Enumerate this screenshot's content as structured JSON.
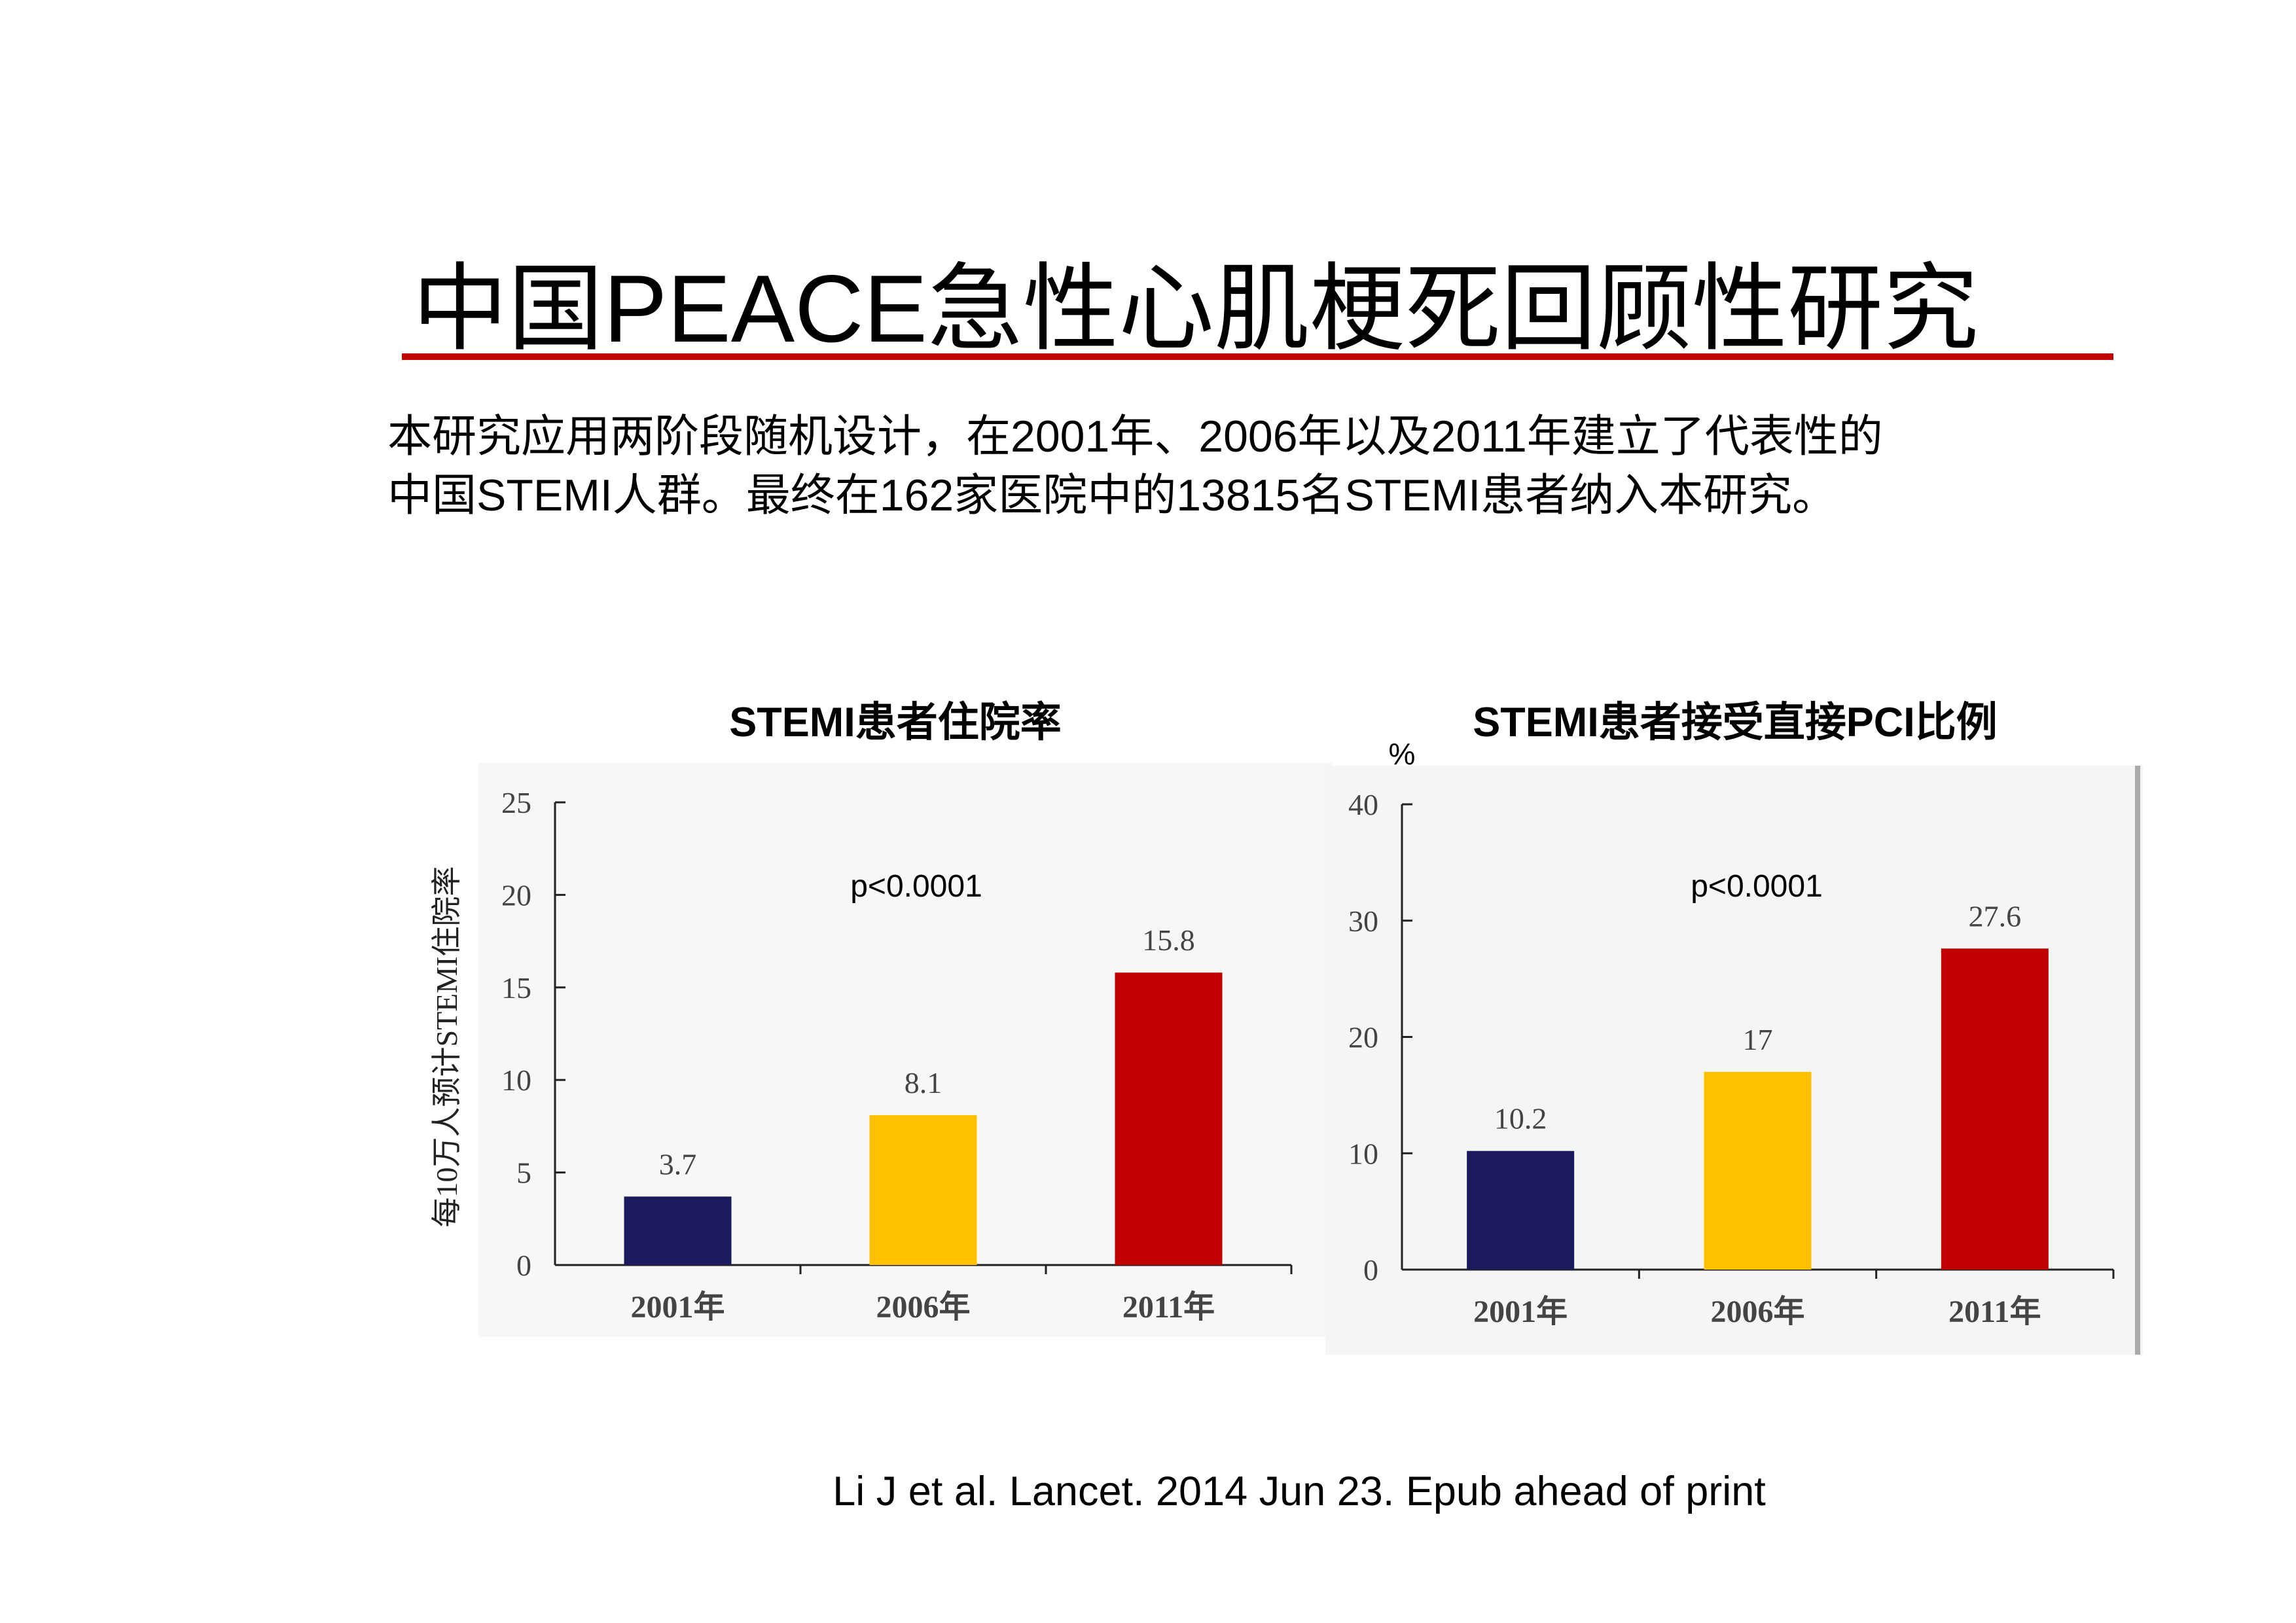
{
  "title": "中国PEACE急性心肌梗死回顾性研究",
  "body": [
    "本研究应用两阶段随机设计，在2001年、2006年以及2011年建立了代表性的",
    "中国STEMI人群。最终在162家医院中的13815名STEMI患者纳入本研究。"
  ],
  "citation": "Li J et al. Lancet. 2014 Jun 23. Epub ahead of print",
  "chart_data": [
    {
      "type": "bar",
      "title": "STEMI患者住院率",
      "y_label": "每10万人预计STEMI住院率",
      "annotation": "p<0.0001",
      "categories": [
        "2001年",
        "2006年",
        "2011年"
      ],
      "values": [
        3.7,
        8.1,
        15.8
      ],
      "colors": [
        "#1b1a5c",
        "#ffc000",
        "#c00000"
      ],
      "ylim": [
        0,
        25
      ],
      "yticks": [
        0,
        5,
        10,
        15,
        20,
        25
      ]
    },
    {
      "type": "bar",
      "title": "STEMI患者接受直接PCI比例",
      "y_unit": "%",
      "annotation": "p<0.0001",
      "categories": [
        "2001年",
        "2006年",
        "2011年"
      ],
      "values": [
        10.2,
        17,
        27.6
      ],
      "colors": [
        "#1b1a5c",
        "#ffc000",
        "#c00000"
      ],
      "ylim": [
        0,
        40
      ],
      "yticks": [
        0,
        10,
        20,
        30,
        40
      ]
    }
  ]
}
